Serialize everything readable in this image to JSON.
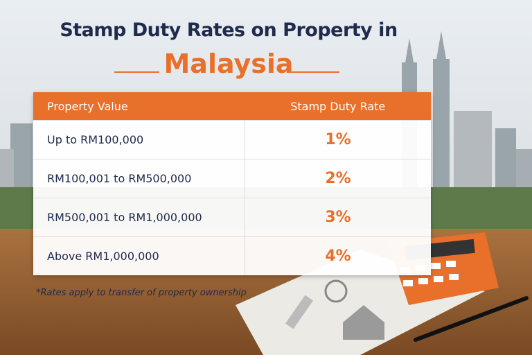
{
  "header": {
    "title": "Stamp Duty Rates on Property in",
    "highlight": "Malaysia"
  },
  "table": {
    "columns": [
      "Property Value",
      "Stamp Duty Rate"
    ],
    "rows": [
      [
        "Up to RM100,000",
        "1%"
      ],
      [
        "RM100,001 to RM500,000",
        "2%"
      ],
      [
        "RM500,001 to RM1,000,000",
        "3%"
      ],
      [
        "Above RM1,000,000",
        "4%"
      ]
    ]
  },
  "footnote": "*Rates apply to transfer of property ownership"
}
